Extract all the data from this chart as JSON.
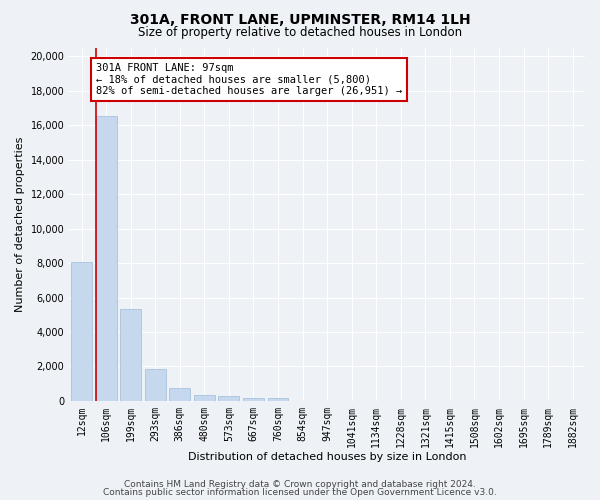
{
  "title1": "301A, FRONT LANE, UPMINSTER, RM14 1LH",
  "title2": "Size of property relative to detached houses in London",
  "xlabel": "Distribution of detached houses by size in London",
  "ylabel": "Number of detached properties",
  "categories": [
    "12sqm",
    "106sqm",
    "199sqm",
    "293sqm",
    "386sqm",
    "480sqm",
    "573sqm",
    "667sqm",
    "760sqm",
    "854sqm",
    "947sqm",
    "1041sqm",
    "1134sqm",
    "1228sqm",
    "1321sqm",
    "1415sqm",
    "1508sqm",
    "1602sqm",
    "1695sqm",
    "1789sqm",
    "1882sqm"
  ],
  "values": [
    8050,
    16500,
    5350,
    1850,
    750,
    340,
    270,
    200,
    180,
    0,
    0,
    0,
    0,
    0,
    0,
    0,
    0,
    0,
    0,
    0,
    0
  ],
  "bar_color": "#c5d8ed",
  "bar_edge_color": "#9bbcd8",
  "highlight_color": "#cc0000",
  "annotation_line": "301A FRONT LANE: 97sqm",
  "annotation_line2": "← 18% of detached houses are smaller (5,800)",
  "annotation_line3": "82% of semi-detached houses are larger (26,951) →",
  "annotation_box_color": "white",
  "annotation_box_edge_color": "#cc0000",
  "ylim": [
    0,
    20500
  ],
  "yticks": [
    0,
    2000,
    4000,
    6000,
    8000,
    10000,
    12000,
    14000,
    16000,
    18000,
    20000
  ],
  "footer1": "Contains HM Land Registry data © Crown copyright and database right 2024.",
  "footer2": "Contains public sector information licensed under the Open Government Licence v3.0.",
  "background_color": "#eef2f7",
  "grid_color": "white",
  "title1_fontsize": 10,
  "title2_fontsize": 8.5,
  "axis_label_fontsize": 8,
  "tick_fontsize": 7,
  "annotation_fontsize": 7.5,
  "footer_fontsize": 6.5,
  "red_line_x": 0.5
}
